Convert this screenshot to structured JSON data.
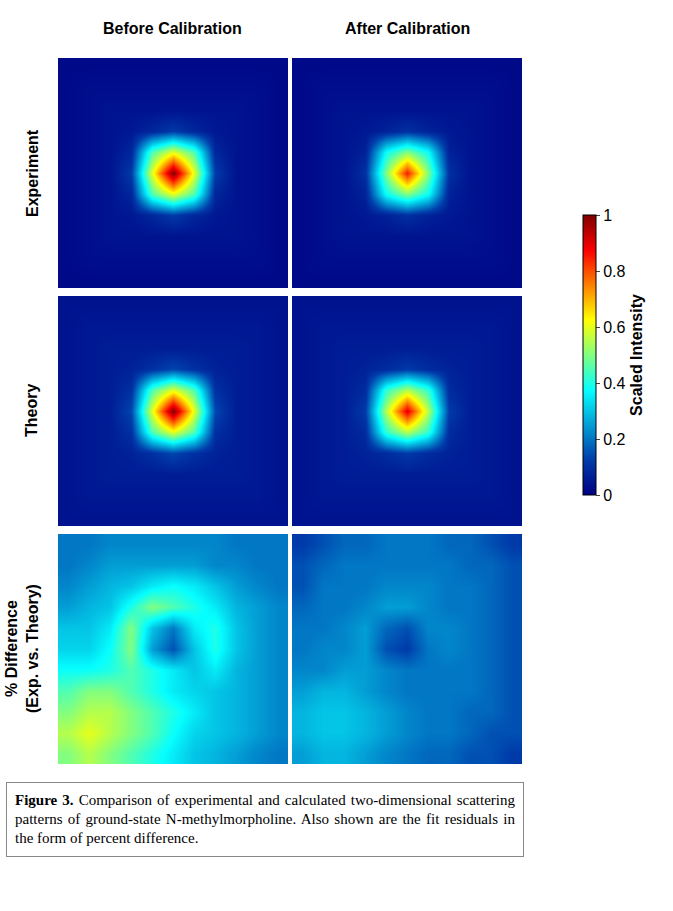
{
  "chart_data": {
    "type": "heatmap",
    "tick_labels": false,
    "columns": [
      "Before Calibration",
      "After Calibration"
    ],
    "rows": [
      "Experiment",
      "Theory",
      "% Difference (Exp. vs. Theory)"
    ],
    "cells": [
      [
        [
          [
            0.02,
            0.02,
            0.02,
            0.02,
            0.02,
            0.02,
            0.02,
            0.02,
            0.02,
            0.02,
            0.02
          ],
          [
            0.02,
            0.03,
            0.03,
            0.03,
            0.03,
            0.03,
            0.03,
            0.03,
            0.03,
            0.03,
            0.02
          ],
          [
            0.02,
            0.03,
            0.04,
            0.04,
            0.04,
            0.04,
            0.04,
            0.04,
            0.04,
            0.03,
            0.02
          ],
          [
            0.02,
            0.03,
            0.04,
            0.05,
            0.08,
            0.12,
            0.08,
            0.05,
            0.04,
            0.03,
            0.02
          ],
          [
            0.02,
            0.03,
            0.04,
            0.08,
            0.45,
            0.6,
            0.45,
            0.08,
            0.04,
            0.03,
            0.02
          ],
          [
            0.02,
            0.03,
            0.04,
            0.12,
            0.6,
            1.0,
            0.6,
            0.12,
            0.04,
            0.03,
            0.02
          ],
          [
            0.02,
            0.03,
            0.04,
            0.08,
            0.45,
            0.6,
            0.45,
            0.08,
            0.04,
            0.03,
            0.02
          ],
          [
            0.02,
            0.03,
            0.04,
            0.05,
            0.08,
            0.12,
            0.08,
            0.05,
            0.04,
            0.03,
            0.02
          ],
          [
            0.02,
            0.03,
            0.04,
            0.04,
            0.04,
            0.04,
            0.04,
            0.04,
            0.04,
            0.03,
            0.02
          ],
          [
            0.02,
            0.03,
            0.03,
            0.03,
            0.03,
            0.03,
            0.03,
            0.03,
            0.03,
            0.03,
            0.02
          ],
          [
            0.02,
            0.02,
            0.02,
            0.02,
            0.02,
            0.02,
            0.02,
            0.02,
            0.02,
            0.02,
            0.02
          ]
        ],
        [
          [
            0.02,
            0.02,
            0.02,
            0.02,
            0.02,
            0.02,
            0.02,
            0.02,
            0.02,
            0.02,
            0.02
          ],
          [
            0.02,
            0.03,
            0.03,
            0.03,
            0.03,
            0.03,
            0.03,
            0.03,
            0.03,
            0.03,
            0.02
          ],
          [
            0.02,
            0.03,
            0.04,
            0.04,
            0.04,
            0.04,
            0.04,
            0.04,
            0.04,
            0.03,
            0.02
          ],
          [
            0.02,
            0.03,
            0.04,
            0.05,
            0.07,
            0.1,
            0.07,
            0.05,
            0.04,
            0.03,
            0.02
          ],
          [
            0.02,
            0.03,
            0.04,
            0.07,
            0.38,
            0.5,
            0.38,
            0.07,
            0.04,
            0.03,
            0.02
          ],
          [
            0.02,
            0.03,
            0.04,
            0.1,
            0.5,
            0.85,
            0.5,
            0.1,
            0.04,
            0.03,
            0.02
          ],
          [
            0.02,
            0.03,
            0.04,
            0.07,
            0.38,
            0.5,
            0.38,
            0.07,
            0.04,
            0.03,
            0.02
          ],
          [
            0.02,
            0.03,
            0.04,
            0.05,
            0.07,
            0.1,
            0.07,
            0.05,
            0.04,
            0.03,
            0.02
          ],
          [
            0.02,
            0.03,
            0.04,
            0.04,
            0.04,
            0.04,
            0.04,
            0.04,
            0.04,
            0.03,
            0.02
          ],
          [
            0.02,
            0.03,
            0.03,
            0.03,
            0.03,
            0.03,
            0.03,
            0.03,
            0.03,
            0.03,
            0.02
          ],
          [
            0.02,
            0.02,
            0.02,
            0.02,
            0.02,
            0.02,
            0.02,
            0.02,
            0.02,
            0.02,
            0.02
          ]
        ]
      ],
      [
        [
          [
            0.04,
            0.04,
            0.04,
            0.04,
            0.04,
            0.04,
            0.04,
            0.04,
            0.04,
            0.04,
            0.04
          ],
          [
            0.04,
            0.05,
            0.05,
            0.05,
            0.05,
            0.05,
            0.05,
            0.05,
            0.05,
            0.05,
            0.04
          ],
          [
            0.04,
            0.05,
            0.06,
            0.06,
            0.06,
            0.06,
            0.06,
            0.06,
            0.06,
            0.05,
            0.04
          ],
          [
            0.04,
            0.05,
            0.06,
            0.07,
            0.1,
            0.14,
            0.1,
            0.07,
            0.06,
            0.05,
            0.04
          ],
          [
            0.04,
            0.05,
            0.06,
            0.1,
            0.45,
            0.6,
            0.45,
            0.1,
            0.06,
            0.05,
            0.04
          ],
          [
            0.04,
            0.05,
            0.06,
            0.14,
            0.6,
            1.0,
            0.6,
            0.14,
            0.06,
            0.05,
            0.04
          ],
          [
            0.04,
            0.05,
            0.06,
            0.1,
            0.45,
            0.6,
            0.45,
            0.1,
            0.06,
            0.05,
            0.04
          ],
          [
            0.04,
            0.05,
            0.06,
            0.07,
            0.1,
            0.14,
            0.1,
            0.07,
            0.06,
            0.05,
            0.04
          ],
          [
            0.04,
            0.05,
            0.06,
            0.06,
            0.06,
            0.06,
            0.06,
            0.06,
            0.06,
            0.05,
            0.04
          ],
          [
            0.04,
            0.05,
            0.05,
            0.05,
            0.05,
            0.05,
            0.05,
            0.05,
            0.05,
            0.05,
            0.04
          ],
          [
            0.04,
            0.04,
            0.04,
            0.04,
            0.04,
            0.04,
            0.04,
            0.04,
            0.04,
            0.04,
            0.04
          ]
        ],
        [
          [
            0.04,
            0.04,
            0.04,
            0.04,
            0.04,
            0.04,
            0.04,
            0.04,
            0.04,
            0.04,
            0.04
          ],
          [
            0.04,
            0.05,
            0.05,
            0.05,
            0.05,
            0.05,
            0.05,
            0.05,
            0.05,
            0.05,
            0.04
          ],
          [
            0.04,
            0.05,
            0.06,
            0.06,
            0.06,
            0.06,
            0.06,
            0.06,
            0.06,
            0.05,
            0.04
          ],
          [
            0.04,
            0.05,
            0.06,
            0.07,
            0.09,
            0.12,
            0.09,
            0.07,
            0.06,
            0.05,
            0.04
          ],
          [
            0.04,
            0.05,
            0.06,
            0.09,
            0.42,
            0.55,
            0.42,
            0.09,
            0.06,
            0.05,
            0.04
          ],
          [
            0.04,
            0.05,
            0.06,
            0.12,
            0.55,
            0.9,
            0.55,
            0.12,
            0.06,
            0.05,
            0.04
          ],
          [
            0.04,
            0.05,
            0.06,
            0.09,
            0.42,
            0.55,
            0.42,
            0.09,
            0.06,
            0.05,
            0.04
          ],
          [
            0.04,
            0.05,
            0.06,
            0.07,
            0.09,
            0.12,
            0.09,
            0.07,
            0.06,
            0.05,
            0.04
          ],
          [
            0.04,
            0.05,
            0.06,
            0.06,
            0.06,
            0.06,
            0.06,
            0.06,
            0.06,
            0.05,
            0.04
          ],
          [
            0.04,
            0.05,
            0.05,
            0.05,
            0.05,
            0.05,
            0.05,
            0.05,
            0.05,
            0.05,
            0.04
          ],
          [
            0.04,
            0.04,
            0.04,
            0.04,
            0.04,
            0.04,
            0.04,
            0.04,
            0.04,
            0.04,
            0.04
          ]
        ]
      ],
      [
        [
          [
            0.2,
            0.2,
            0.22,
            0.22,
            0.22,
            0.22,
            0.22,
            0.22,
            0.2,
            0.2,
            0.2
          ],
          [
            0.2,
            0.22,
            0.25,
            0.25,
            0.25,
            0.25,
            0.25,
            0.22,
            0.22,
            0.2,
            0.2
          ],
          [
            0.22,
            0.25,
            0.28,
            0.3,
            0.35,
            0.38,
            0.35,
            0.3,
            0.25,
            0.22,
            0.2
          ],
          [
            0.25,
            0.28,
            0.3,
            0.4,
            0.5,
            0.45,
            0.4,
            0.35,
            0.28,
            0.25,
            0.22
          ],
          [
            0.3,
            0.3,
            0.35,
            0.5,
            0.3,
            0.2,
            0.35,
            0.4,
            0.3,
            0.25,
            0.22
          ],
          [
            0.32,
            0.32,
            0.38,
            0.5,
            0.25,
            0.15,
            0.3,
            0.4,
            0.3,
            0.25,
            0.22
          ],
          [
            0.38,
            0.38,
            0.4,
            0.45,
            0.4,
            0.35,
            0.3,
            0.35,
            0.28,
            0.25,
            0.22
          ],
          [
            0.45,
            0.5,
            0.5,
            0.45,
            0.4,
            0.35,
            0.32,
            0.3,
            0.28,
            0.25,
            0.22
          ],
          [
            0.5,
            0.55,
            0.55,
            0.5,
            0.45,
            0.4,
            0.35,
            0.3,
            0.28,
            0.25,
            0.22
          ],
          [
            0.55,
            0.6,
            0.55,
            0.5,
            0.45,
            0.38,
            0.32,
            0.3,
            0.28,
            0.25,
            0.22
          ],
          [
            0.5,
            0.55,
            0.5,
            0.45,
            0.4,
            0.35,
            0.3,
            0.28,
            0.25,
            0.22,
            0.2
          ]
        ],
        [
          [
            0.12,
            0.15,
            0.18,
            0.18,
            0.2,
            0.2,
            0.2,
            0.18,
            0.18,
            0.15,
            0.12
          ],
          [
            0.15,
            0.18,
            0.2,
            0.2,
            0.2,
            0.2,
            0.2,
            0.2,
            0.18,
            0.18,
            0.15
          ],
          [
            0.15,
            0.2,
            0.2,
            0.2,
            0.22,
            0.22,
            0.22,
            0.2,
            0.2,
            0.18,
            0.15
          ],
          [
            0.18,
            0.2,
            0.2,
            0.22,
            0.25,
            0.25,
            0.22,
            0.2,
            0.2,
            0.18,
            0.15
          ],
          [
            0.2,
            0.2,
            0.22,
            0.25,
            0.18,
            0.15,
            0.22,
            0.22,
            0.2,
            0.18,
            0.15
          ],
          [
            0.2,
            0.22,
            0.22,
            0.25,
            0.15,
            0.12,
            0.2,
            0.22,
            0.2,
            0.18,
            0.15
          ],
          [
            0.22,
            0.22,
            0.25,
            0.25,
            0.22,
            0.2,
            0.2,
            0.2,
            0.2,
            0.18,
            0.15
          ],
          [
            0.25,
            0.28,
            0.28,
            0.25,
            0.22,
            0.2,
            0.2,
            0.2,
            0.2,
            0.18,
            0.15
          ],
          [
            0.28,
            0.3,
            0.3,
            0.28,
            0.25,
            0.22,
            0.2,
            0.2,
            0.18,
            0.18,
            0.15
          ],
          [
            0.28,
            0.3,
            0.3,
            0.28,
            0.25,
            0.22,
            0.2,
            0.2,
            0.18,
            0.15,
            0.15
          ],
          [
            0.25,
            0.28,
            0.28,
            0.25,
            0.22,
            0.2,
            0.18,
            0.18,
            0.15,
            0.15,
            0.12
          ]
        ]
      ]
    ],
    "colorbar": {
      "title": "Scaled Intensity",
      "range": [
        0,
        1
      ],
      "ticks": [
        0,
        0.2,
        0.4,
        0.6,
        0.8,
        1
      ]
    }
  },
  "caption": {
    "label": "Figure 3.",
    "text": "Comparison of experimental and calculated two-dimensional scattering patterns of ground-state N-methylmorpholine. Also shown are the fit residuals in the form of percent difference."
  }
}
